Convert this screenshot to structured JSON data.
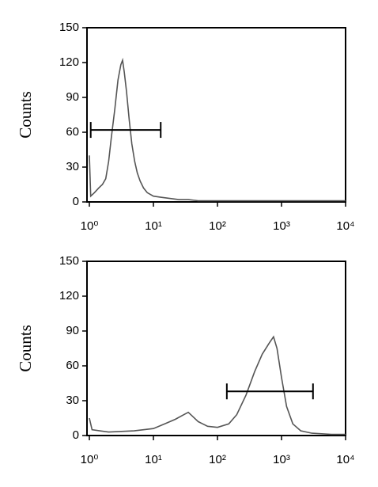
{
  "chart_data": [
    {
      "type": "line",
      "ylabel": "Counts",
      "color": "#555555",
      "log_x": true,
      "xlim": [
        1,
        10000
      ],
      "xticks": [
        {
          "value": 1,
          "label": "10⁰"
        },
        {
          "value": 10,
          "label": "10¹"
        },
        {
          "value": 100,
          "label": "10²"
        },
        {
          "value": 1000,
          "label": "10³"
        },
        {
          "value": 10000,
          "label": "10⁴"
        }
      ],
      "ylim": [
        0,
        150
      ],
      "yticks": [
        0,
        30,
        60,
        90,
        120,
        150
      ],
      "x": [
        1,
        1.05,
        1.2,
        1.4,
        1.6,
        1.8,
        2.0,
        2.2,
        2.5,
        2.8,
        3.1,
        3.3,
        3.5,
        3.8,
        4.2,
        4.6,
        5.1,
        5.6,
        6.2,
        7,
        8,
        10,
        13,
        18,
        25,
        35,
        50,
        80,
        150,
        400,
        1000,
        3000,
        10000
      ],
      "values": [
        40,
        5,
        8,
        12,
        15,
        20,
        35,
        55,
        80,
        105,
        118,
        122,
        112,
        95,
        70,
        50,
        35,
        25,
        18,
        12,
        8,
        5,
        4,
        3,
        2,
        2,
        1,
        1,
        1,
        1,
        1,
        1,
        1
      ],
      "gate": {
        "x": [
          1.05,
          13
        ],
        "y": 62
      }
    },
    {
      "type": "line",
      "ylabel": "Counts",
      "color": "#555555",
      "log_x": true,
      "xlim": [
        1,
        10000
      ],
      "xticks": [
        {
          "value": 1,
          "label": "10⁰"
        },
        {
          "value": 10,
          "label": "10¹"
        },
        {
          "value": 100,
          "label": "10²"
        },
        {
          "value": 1000,
          "label": "10³"
        },
        {
          "value": 10000,
          "label": "10⁴"
        }
      ],
      "ylim": [
        0,
        150
      ],
      "yticks": [
        0,
        30,
        60,
        90,
        120,
        150
      ],
      "x": [
        1,
        1.1,
        2,
        5,
        10,
        15,
        22,
        30,
        35,
        40,
        50,
        70,
        100,
        150,
        200,
        280,
        380,
        500,
        650,
        750,
        850,
        1000,
        1200,
        1500,
        2000,
        3000,
        6000,
        10000
      ],
      "values": [
        15,
        5,
        3,
        4,
        6,
        10,
        14,
        18,
        20,
        17,
        12,
        8,
        7,
        10,
        18,
        35,
        55,
        70,
        80,
        85,
        75,
        50,
        25,
        10,
        4,
        2,
        1,
        1
      ],
      "gate": {
        "x": [
          140,
          3100
        ],
        "y": 38
      }
    }
  ]
}
